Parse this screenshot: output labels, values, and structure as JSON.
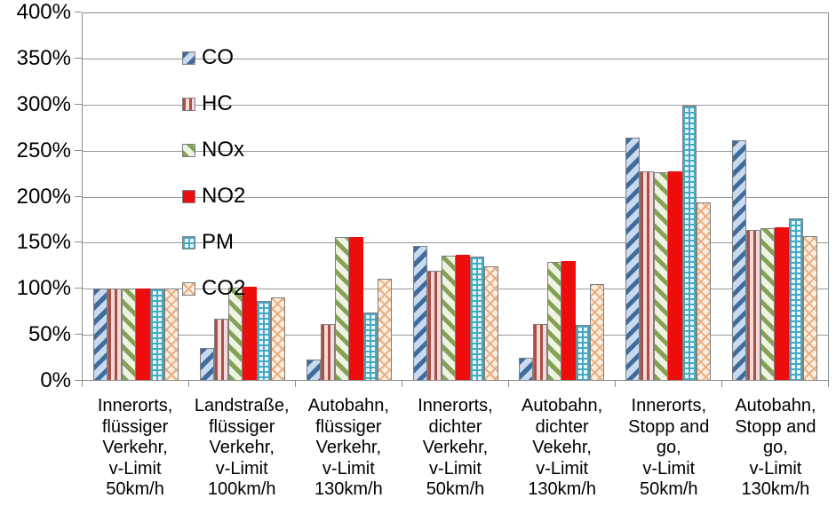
{
  "chart_data": {
    "type": "bar",
    "title": "",
    "xlabel": "",
    "ylabel": "",
    "unit": "%",
    "grid": true,
    "legend_position": "top-left-inside",
    "y_axis": {
      "min": 0,
      "max": 400,
      "step": 50,
      "tick_labels": [
        "400%",
        "350%",
        "300%",
        "250%",
        "200%",
        "150%",
        "100%",
        "50%",
        "0%"
      ]
    },
    "categories": [
      "Innerorts,\nflüssiger\nVerkehr,\nv-Limit\n50km/h",
      "Landstraße,\nflüssiger\nVerkehr,\nv-Limit\n100km/h",
      "Autobahn,\nflüssiger\nVerkehr,\nv-Limit\n130km/h",
      "Innerorts,\ndichter\nVerkehr,\nv-Limit\n50km/h",
      "Autobahn,\ndichter\nVekehr,\nv-Limit\n130km/h",
      "Innerorts,\nStopp and\ngo,\nv-Limit\n50km/h",
      "Autobahn,\nStopp and\ngo,\nv-Limit\n130km/h"
    ],
    "series": [
      {
        "name": "CO",
        "pattern": "diag-down",
        "fg": "#3f6c9c",
        "bg": "#c9d9ee",
        "values": [
          100,
          35,
          22,
          146,
          24,
          264,
          262
        ]
      },
      {
        "name": "HC",
        "pattern": "vertical",
        "fg": "#ac4e44",
        "bg": "#f2dbda",
        "values": [
          100,
          67,
          61,
          119,
          61,
          228,
          164
        ]
      },
      {
        "name": "NOx",
        "pattern": "diag-up",
        "fg": "#84a254",
        "bg": "#eef3e2",
        "values": [
          100,
          101,
          156,
          136,
          129,
          227,
          166
        ]
      },
      {
        "name": "NO2",
        "pattern": "solid",
        "fg": "#ee0d0d",
        "bg": "#ee0d0d",
        "values": [
          100,
          102,
          156,
          137,
          130,
          228,
          167
        ]
      },
      {
        "name": "PM",
        "pattern": "grid",
        "fg": "#45aac4",
        "bg": "#eaf6f9",
        "values": [
          100,
          86,
          74,
          135,
          60,
          299,
          176
        ]
      },
      {
        "name": "CO2",
        "pattern": "crosshatch",
        "fg": "#e8ae82",
        "bg": "#fceede",
        "values": [
          100,
          90,
          110,
          124,
          105,
          194,
          157
        ]
      }
    ]
  },
  "colors": {
    "gridline": "#999999",
    "axis": "#8c8c8c",
    "bar_border": "#7f7f7f",
    "text": "#000000",
    "background": "#ffffff"
  }
}
